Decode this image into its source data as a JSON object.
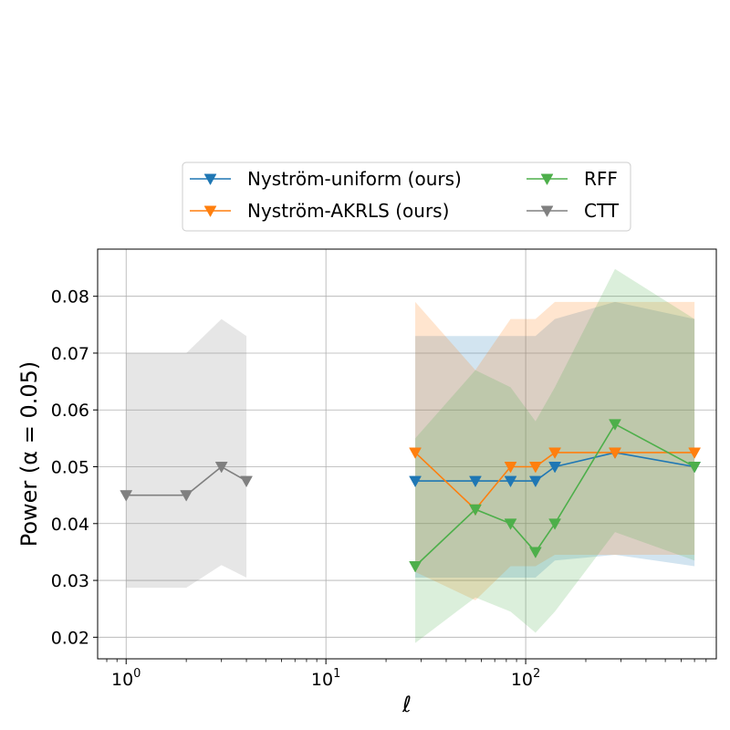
{
  "chart_data": {
    "type": "line",
    "xscale": "log",
    "xlabel": "ℓ",
    "ylabel": "Power (α = 0.05)",
    "xlim": [
      0.72,
      900
    ],
    "ylim": [
      0.0162,
      0.0883
    ],
    "xticks": [
      {
        "value": 1,
        "base": "10",
        "exp": "0"
      },
      {
        "value": 10,
        "base": "10",
        "exp": "1"
      },
      {
        "value": 100,
        "base": "10",
        "exp": "2"
      }
    ],
    "yticks": [
      "0.02",
      "0.03",
      "0.04",
      "0.05",
      "0.06",
      "0.07",
      "0.08"
    ],
    "grid": true,
    "legend_position": "top-center",
    "series": [
      {
        "name": "Nyström-uniform (ours)",
        "color": "#1f77b4",
        "x": [
          28,
          56,
          84,
          112,
          140,
          280,
          700
        ],
        "y": [
          0.0475,
          0.0475,
          0.0475,
          0.0475,
          0.05,
          0.0525,
          0.05
        ],
        "lower": [
          0.0305,
          0.0305,
          0.0305,
          0.0305,
          0.0335,
          0.0345,
          0.0325
        ],
        "upper": [
          0.073,
          0.073,
          0.073,
          0.073,
          0.076,
          0.079,
          0.076
        ]
      },
      {
        "name": "Nyström-AKRLS (ours)",
        "color": "#ff7f0e",
        "x": [
          28,
          56,
          84,
          112,
          140,
          280,
          700
        ],
        "y": [
          0.0525,
          0.0425,
          0.05,
          0.05,
          0.0525,
          0.0525,
          0.0525
        ],
        "lower": [
          0.0315,
          0.0265,
          0.0325,
          0.0325,
          0.0345,
          0.0345,
          0.0345
        ],
        "upper": [
          0.079,
          0.067,
          0.076,
          0.076,
          0.079,
          0.079,
          0.079
        ]
      },
      {
        "name": "RFF",
        "color": "#4daf4a",
        "x": [
          28,
          56,
          84,
          112,
          140,
          280,
          700
        ],
        "y": [
          0.0325,
          0.0425,
          0.04,
          0.035,
          0.04,
          0.0575,
          0.05
        ],
        "lower": [
          0.019,
          0.027,
          0.0245,
          0.0208,
          0.0245,
          0.0385,
          0.0335
        ],
        "upper": [
          0.055,
          0.067,
          0.064,
          0.058,
          0.064,
          0.0848,
          0.076
        ]
      },
      {
        "name": "CTT",
        "color": "#808080",
        "x": [
          1,
          2,
          3,
          4
        ],
        "y": [
          0.045,
          0.045,
          0.05,
          0.0475
        ],
        "lower": [
          0.0287,
          0.0287,
          0.0327,
          0.0305
        ],
        "upper": [
          0.07,
          0.07,
          0.076,
          0.073
        ]
      }
    ]
  }
}
